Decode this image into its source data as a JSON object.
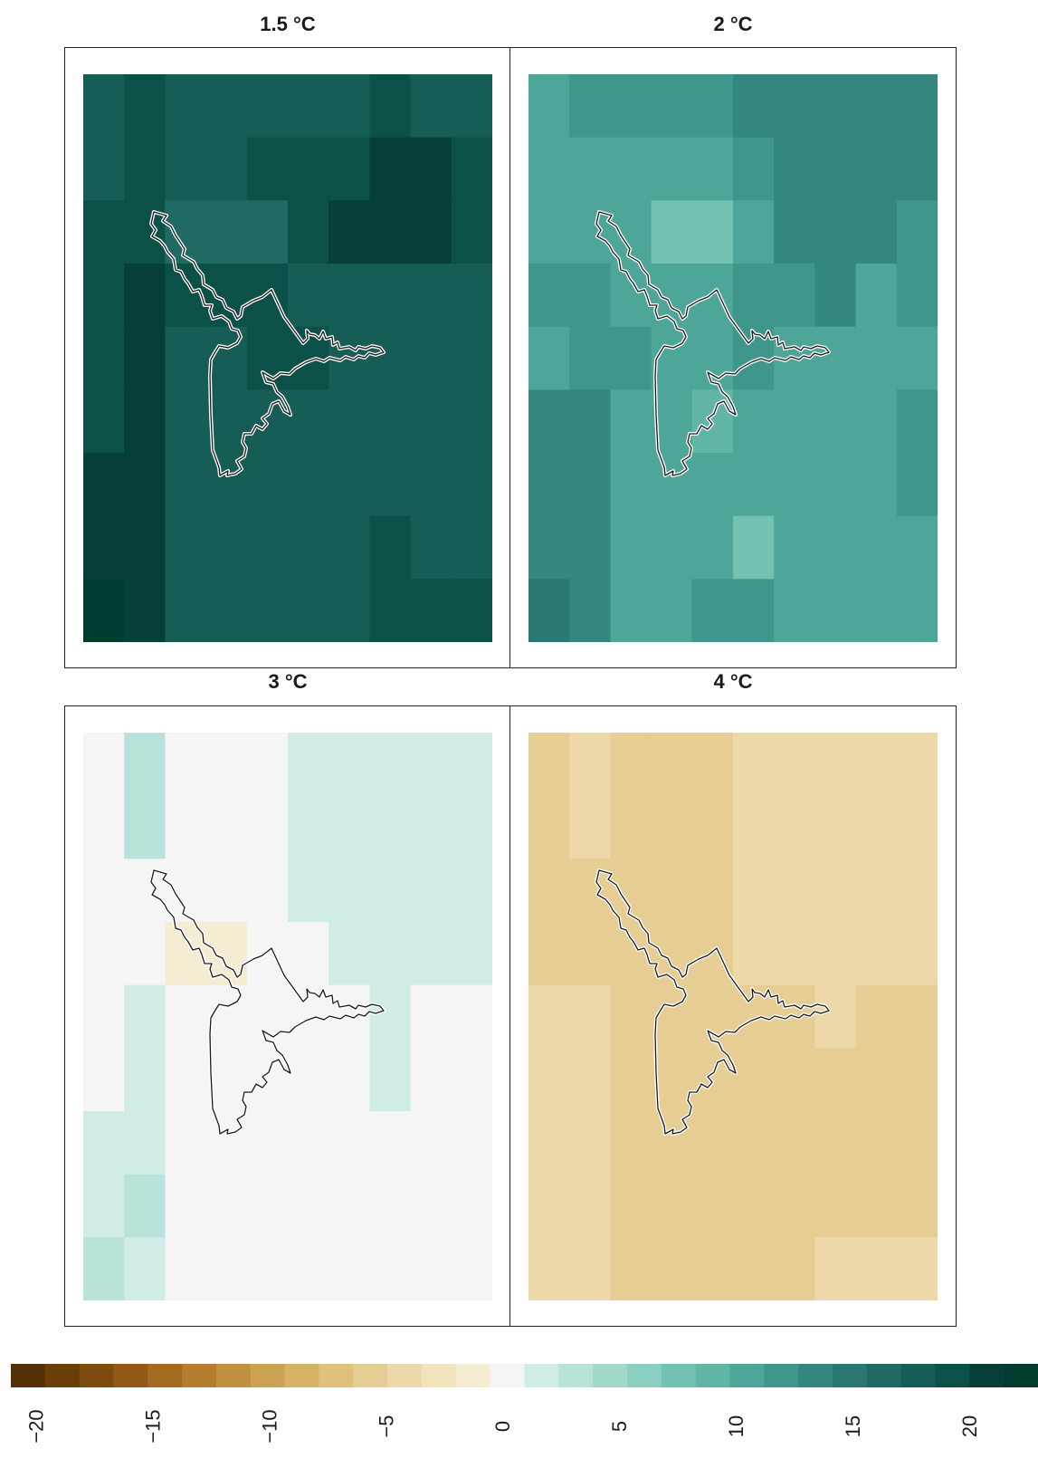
{
  "palette": [
    "#543005",
    "#6a3d09",
    "#7f4a0f",
    "#935a17",
    "#a56c21",
    "#b57e2e",
    "#c2913f",
    "#cda252",
    "#d7b366",
    "#dfc17d",
    "#e6cd93",
    "#ecd8a8",
    "#f1e3bd",
    "#f5edd1",
    "#f5f5f5",
    "#cfece7",
    "#b9e2da",
    "#a2d9cd",
    "#8bcfc0",
    "#74c2b1",
    "#60b5a5",
    "#4da698",
    "#3f978b",
    "#33877e",
    "#2a7871",
    "#206a63",
    "#155d55",
    "#0c5148",
    "#053f37",
    "#003c30"
  ],
  "legend": {
    "ticks": [
      {
        "value": -20,
        "label": "−20"
      },
      {
        "value": -15,
        "label": "−15"
      },
      {
        "value": -10,
        "label": "−10"
      },
      {
        "value": -5,
        "label": "−5"
      },
      {
        "value": 0,
        "label": "0"
      },
      {
        "value": 5,
        "label": "5"
      },
      {
        "value": 10,
        "label": "10"
      },
      {
        "value": 15,
        "label": "15"
      },
      {
        "value": 20,
        "label": "20"
      }
    ]
  },
  "panels": [
    {
      "title": "1.5 °C",
      "grid": [
        [
          12,
          13,
          12,
          12,
          12,
          12,
          12,
          13,
          12,
          12
        ],
        [
          12,
          13,
          12,
          12,
          13,
          13,
          13,
          14,
          14,
          13
        ],
        [
          13,
          13,
          11,
          11,
          11,
          13,
          14,
          14,
          14,
          13
        ],
        [
          13,
          14,
          13,
          13,
          13,
          12,
          12,
          12,
          12,
          12
        ],
        [
          13,
          14,
          12,
          12,
          13,
          13,
          12,
          12,
          12,
          12
        ],
        [
          13,
          14,
          12,
          12,
          12,
          12,
          12,
          12,
          12,
          12
        ],
        [
          14,
          14,
          12,
          12,
          12,
          12,
          12,
          12,
          12,
          12
        ],
        [
          14,
          14,
          12,
          12,
          12,
          12,
          12,
          13,
          12,
          12
        ],
        [
          15,
          14,
          12,
          12,
          12,
          12,
          12,
          13,
          13,
          13
        ]
      ]
    },
    {
      "title": "2 °C",
      "grid": [
        [
          7,
          8,
          8,
          8,
          8,
          9,
          9,
          9,
          9,
          9
        ],
        [
          7,
          7,
          7,
          7,
          7,
          8,
          9,
          9,
          9,
          9
        ],
        [
          7,
          7,
          7,
          5,
          5,
          7,
          9,
          9,
          9,
          8
        ],
        [
          8,
          8,
          7,
          7,
          7,
          8,
          8,
          9,
          7,
          8
        ],
        [
          7,
          8,
          8,
          7,
          7,
          8,
          7,
          7,
          7,
          7
        ],
        [
          9,
          9,
          7,
          7,
          6,
          7,
          7,
          7,
          7,
          8
        ],
        [
          9,
          9,
          7,
          7,
          7,
          7,
          7,
          7,
          7,
          8
        ],
        [
          9,
          9,
          7,
          7,
          7,
          5,
          7,
          7,
          7,
          7
        ],
        [
          10,
          9,
          7,
          7,
          8,
          8,
          7,
          7,
          7,
          7
        ]
      ]
    },
    {
      "title": "3 °C",
      "grid": [
        [
          0,
          2,
          0,
          0,
          0,
          1,
          1,
          1,
          1,
          1
        ],
        [
          0,
          2,
          0,
          0,
          0,
          1,
          1,
          1,
          1,
          1
        ],
        [
          0,
          0,
          0,
          0,
          0,
          1,
          1,
          1,
          1,
          1
        ],
        [
          0,
          0,
          -1,
          -1,
          0,
          0,
          1,
          1,
          1,
          1
        ],
        [
          0,
          1,
          0,
          0,
          0,
          0,
          0,
          1,
          0,
          0
        ],
        [
          0,
          1,
          0,
          0,
          0,
          0,
          0,
          1,
          0,
          0
        ],
        [
          1,
          1,
          0,
          0,
          0,
          0,
          0,
          0,
          0,
          0
        ],
        [
          1,
          2,
          0,
          0,
          0,
          0,
          0,
          0,
          0,
          0
        ],
        [
          2,
          1,
          0,
          0,
          0,
          0,
          0,
          0,
          0,
          0
        ]
      ]
    },
    {
      "title": "4 °C",
      "grid": [
        [
          -4,
          -3,
          -4,
          -4,
          -4,
          -3,
          -3,
          -3,
          -3,
          -3
        ],
        [
          -4,
          -3,
          -4,
          -4,
          -4,
          -3,
          -3,
          -3,
          -3,
          -3
        ],
        [
          -4,
          -4,
          -4,
          -4,
          -4,
          -3,
          -3,
          -3,
          -3,
          -3
        ],
        [
          -4,
          -4,
          -4,
          -4,
          -4,
          -3,
          -3,
          -3,
          -3,
          -3
        ],
        [
          -3,
          -3,
          -4,
          -4,
          -4,
          -4,
          -4,
          -3,
          -4,
          -4
        ],
        [
          -3,
          -3,
          -4,
          -4,
          -4,
          -4,
          -4,
          -4,
          -4,
          -4
        ],
        [
          -3,
          -3,
          -4,
          -4,
          -4,
          -4,
          -4,
          -4,
          -4,
          -4
        ],
        [
          -3,
          -3,
          -4,
          -4,
          -4,
          -4,
          -4,
          -4,
          -4,
          -4
        ],
        [
          -3,
          -3,
          -4,
          -4,
          -4,
          -4,
          -4,
          -3,
          -3,
          -3
        ]
      ]
    }
  ]
}
